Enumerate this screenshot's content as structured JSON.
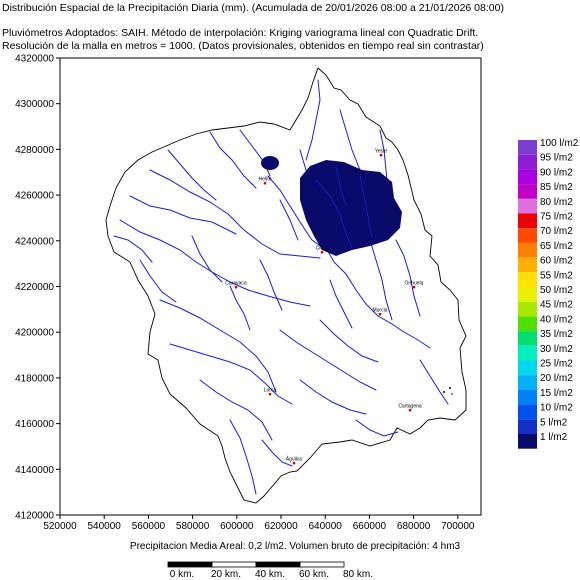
{
  "header": {
    "title": "Distribución Espacial de la Precipitación Diaria (mm). (Acumulada de 20/01/2026 08:00 a 21/01/2026 08:00)",
    "line2": "Pluviómetros Adoptados: SAIH.   Método de interpolación: Kriging variograma lineal con Quadratic Drift.",
    "line3": "Resolución de la malla en metros = 1000. (Datos provisionales, obtenidos en tiempo real sin contrastar)"
  },
  "axes": {
    "y_ticks": [
      "4320000",
      "4300000",
      "4280000",
      "4260000",
      "4240000",
      "4220000",
      "4200000",
      "4180000",
      "4160000",
      "4140000",
      "4120000"
    ],
    "x_ticks": [
      "520000",
      "540000",
      "560000",
      "580000",
      "600000",
      "620000",
      "640000",
      "660000",
      "680000",
      "700000"
    ]
  },
  "cities": [
    {
      "name": "Yeste"
    },
    {
      "name": "Hellín"
    },
    {
      "name": "Cieza"
    },
    {
      "name": "Caravaca"
    },
    {
      "name": "Orihuela"
    },
    {
      "name": "Murcia"
    },
    {
      "name": "Lorca"
    },
    {
      "name": "Cartagena"
    },
    {
      "name": "Águilas"
    }
  ],
  "legend": {
    "items": [
      {
        "label": "100 l/m2",
        "color": "#7a3fd0"
      },
      {
        "label": "95 l/m2",
        "color": "#8c1fd6"
      },
      {
        "label": "90 l/m2",
        "color": "#a800e0"
      },
      {
        "label": "85 l/m2",
        "color": "#c000c8"
      },
      {
        "label": "80 l/m2",
        "color": "#e070e0"
      },
      {
        "label": "75 l/m2",
        "color": "#f00000"
      },
      {
        "label": "70 l/m2",
        "color": "#ff4800"
      },
      {
        "label": "65 l/m2",
        "color": "#ff8000"
      },
      {
        "label": "60 l/m2",
        "color": "#ffb000"
      },
      {
        "label": "55 l/m2",
        "color": "#ffe000"
      },
      {
        "label": "50 l/m2",
        "color": "#e8f000"
      },
      {
        "label": "45 l/m2",
        "color": "#a8e800"
      },
      {
        "label": "40 l/m2",
        "color": "#50e000"
      },
      {
        "label": "35 l/m2",
        "color": "#00e070"
      },
      {
        "label": "30 l/m2",
        "color": "#00f0c0"
      },
      {
        "label": "25 l/m2",
        "color": "#00d8f0"
      },
      {
        "label": "20 l/m2",
        "color": "#00b0f8"
      },
      {
        "label": "15 l/m2",
        "color": "#0080f8"
      },
      {
        "label": "10 l/m2",
        "color": "#0050f0"
      },
      {
        "label": "5 l/m2",
        "color": "#1030c8"
      },
      {
        "label": "1 l/m2",
        "color": "#0a0a6a"
      }
    ]
  },
  "footer": {
    "text": "Precipitacion Media Areal: 0,2 l/m2. Volumen bruto de precipitación: 4 hm3"
  },
  "scale_bar": {
    "labels": [
      "0 km.",
      "20 km.",
      "40 km.",
      "60 km.",
      "80 km."
    ]
  },
  "colors": {
    "river": "#1a1adc",
    "rain_area": "#0a0a6a",
    "city_marker": "#d00000"
  }
}
